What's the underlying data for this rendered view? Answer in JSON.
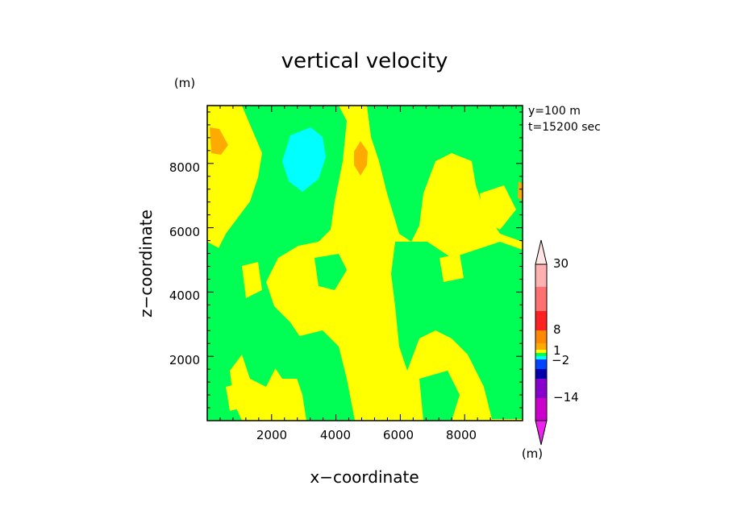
{
  "chart_data": {
    "type": "heatmap",
    "title": "vertical velocity",
    "xlabel": "x−coordinate",
    "ylabel": "z−coordinate",
    "y_unit": "(m)",
    "colorbar_unit": "(m)",
    "annotations": [
      "y=100  m",
      "t=15200 sec"
    ],
    "xlim": [
      0,
      9800
    ],
    "ylim": [
      0,
      9800
    ],
    "x_ticks": [
      2000,
      4000,
      6000,
      8000
    ],
    "y_ticks": [
      2000,
      4000,
      6000,
      8000
    ],
    "colorbar_labels": [
      "30",
      "8",
      "1",
      "−2",
      "−14"
    ],
    "colors": {
      "yellow": "#ffff00",
      "green": "#00ff55",
      "cyan": "#00ffff",
      "orange": "#ffaa00"
    }
  }
}
